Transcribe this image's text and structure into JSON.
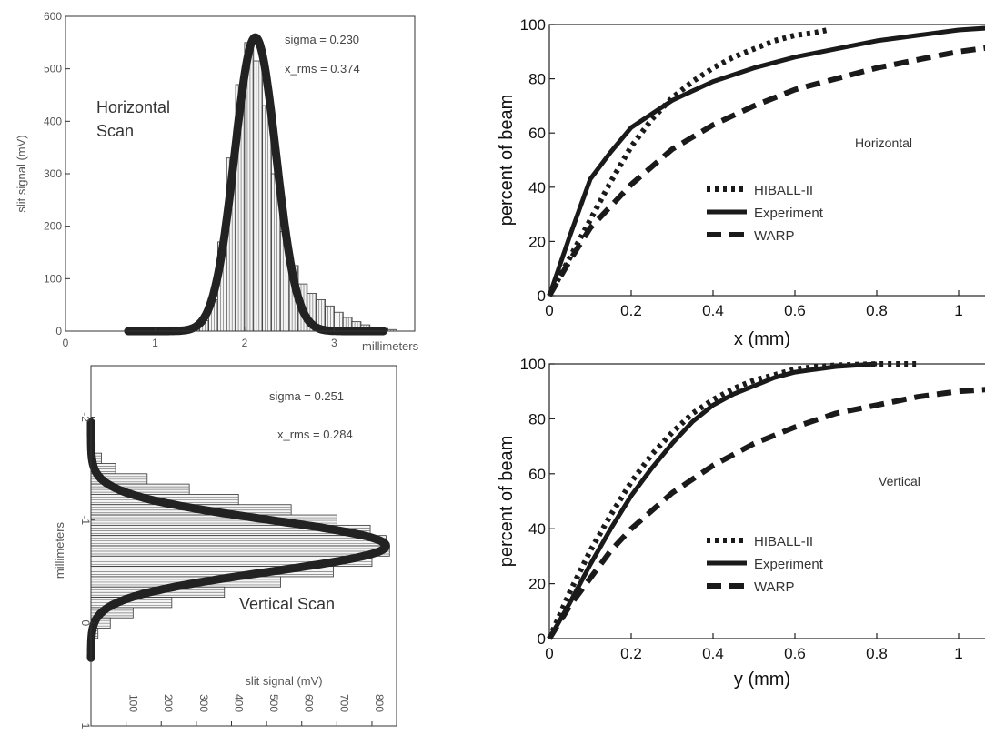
{
  "chart_data": [
    {
      "id": "h_hist",
      "type": "bar",
      "annotation": "Horizontal\nScan",
      "stats": [
        "sigma = 0.230",
        "x_rms = 0.374"
      ],
      "ylabel": "slit signal (mV)",
      "x_unit_label": "millimeters",
      "xlim": [
        0,
        3.9
      ],
      "ylim": [
        0,
        600
      ],
      "xticks": [
        0,
        1,
        2,
        3
      ],
      "yticks": [
        0,
        100,
        200,
        300,
        400,
        500,
        600
      ],
      "bins": [
        0.7,
        0.8,
        0.9,
        1.0,
        1.1,
        1.2,
        1.3,
        1.4,
        1.5,
        1.6,
        1.7,
        1.8,
        1.9,
        2.0,
        2.1,
        2.2,
        2.3,
        2.4,
        2.5,
        2.6,
        2.7,
        2.8,
        2.9,
        3.0,
        3.1,
        3.2,
        3.3,
        3.4,
        3.5,
        3.6
      ],
      "bin_width": 0.1,
      "values": [
        4,
        5,
        6,
        7,
        8,
        8,
        8,
        10,
        20,
        60,
        170,
        330,
        470,
        550,
        515,
        430,
        300,
        190,
        125,
        90,
        72,
        60,
        48,
        36,
        26,
        18,
        12,
        8,
        5,
        3
      ],
      "fit": {
        "name": "gaussian fit",
        "mu": 2.12,
        "sigma": 0.23,
        "amplitude": 560
      }
    },
    {
      "id": "v_hist",
      "type": "bar",
      "orientation": "horizontal",
      "annotation": "Vertical Scan",
      "stats": [
        "sigma = 0.251",
        "x_rms = 0.284"
      ],
      "xlabel": "slit signal (mV)",
      "ylabel": "millimeters",
      "xlim": [
        0,
        870
      ],
      "ylim": [
        -2.5,
        1
      ],
      "xticks": [
        100,
        200,
        300,
        400,
        500,
        600,
        700,
        800
      ],
      "yticks": [
        -2,
        -1,
        0,
        1
      ],
      "bins": [
        -1.95,
        -1.85,
        -1.75,
        -1.65,
        -1.55,
        -1.45,
        -1.35,
        -1.25,
        -1.15,
        -1.05,
        -0.95,
        -0.85,
        -0.75,
        -0.65,
        -0.55,
        -0.45,
        -0.35,
        -0.25,
        -0.15,
        -0.05,
        0.05,
        0.15,
        0.25
      ],
      "bin_width": 0.1,
      "values": [
        2,
        4,
        12,
        30,
        70,
        160,
        280,
        420,
        570,
        700,
        795,
        840,
        850,
        800,
        690,
        540,
        380,
        230,
        120,
        55,
        20,
        6,
        2
      ],
      "fit": {
        "name": "gaussian fit",
        "mu": -0.75,
        "sigma": 0.251,
        "amplitude": 840
      }
    },
    {
      "id": "h_cum",
      "type": "line",
      "panel_label": "Horizontal",
      "xlabel": "x (mm)",
      "ylabel": "percent of beam",
      "xlim": [
        0,
        1.2
      ],
      "ylim": [
        0,
        100
      ],
      "xticks": [
        0,
        0.2,
        0.4,
        0.6,
        0.8,
        1
      ],
      "yticks": [
        0,
        20,
        40,
        60,
        80,
        100
      ],
      "series": [
        {
          "name": "HIBALL-II",
          "style": "dotted",
          "x": [
            0,
            0.05,
            0.1,
            0.15,
            0.2,
            0.25,
            0.3,
            0.35,
            0.4,
            0.45,
            0.5,
            0.55,
            0.6,
            0.65,
            0.68
          ],
          "y": [
            0,
            14,
            28,
            42,
            55,
            65,
            73,
            79,
            84,
            88,
            91,
            94,
            96,
            97,
            98
          ]
        },
        {
          "name": "Experiment",
          "style": "solid",
          "x": [
            0,
            0.05,
            0.1,
            0.15,
            0.2,
            0.3,
            0.4,
            0.5,
            0.6,
            0.7,
            0.8,
            0.9,
            1.0,
            1.1,
            1.2
          ],
          "y": [
            0,
            22,
            43,
            53,
            62,
            72,
            79,
            84,
            88,
            91,
            94,
            96,
            98,
            99,
            100
          ]
        },
        {
          "name": "WARP",
          "style": "dashed",
          "x": [
            0,
            0.05,
            0.1,
            0.15,
            0.2,
            0.3,
            0.4,
            0.5,
            0.6,
            0.7,
            0.8,
            0.9,
            1.0,
            1.1,
            1.2
          ],
          "y": [
            0,
            13,
            25,
            33,
            41,
            54,
            63,
            70,
            76,
            80,
            84,
            87,
            90,
            92,
            93
          ]
        }
      ]
    },
    {
      "id": "v_cum",
      "type": "line",
      "panel_label": "Vertical",
      "xlabel": "y (mm)",
      "ylabel": "percent of beam",
      "xlim": [
        0,
        1.2
      ],
      "ylim": [
        0,
        100
      ],
      "xticks": [
        0,
        0.2,
        0.4,
        0.6,
        0.8,
        1
      ],
      "yticks": [
        0,
        20,
        40,
        60,
        80,
        100
      ],
      "series": [
        {
          "name": "HIBALL-II",
          "style": "dotted",
          "x": [
            0,
            0.05,
            0.1,
            0.15,
            0.2,
            0.25,
            0.3,
            0.35,
            0.4,
            0.45,
            0.5,
            0.55,
            0.6,
            0.65,
            0.7,
            0.8,
            0.9
          ],
          "y": [
            0,
            17,
            32,
            45,
            57,
            67,
            75,
            82,
            87,
            91,
            94,
            96,
            98,
            99,
            99.5,
            100,
            100
          ]
        },
        {
          "name": "Experiment",
          "style": "solid",
          "x": [
            0,
            0.05,
            0.1,
            0.15,
            0.2,
            0.25,
            0.3,
            0.35,
            0.4,
            0.45,
            0.5,
            0.55,
            0.6,
            0.65,
            0.7,
            0.8
          ],
          "y": [
            0,
            13,
            27,
            40,
            52,
            62,
            71,
            79,
            85,
            89,
            92,
            95,
            97,
            98,
            99,
            100
          ]
        },
        {
          "name": "WARP",
          "style": "dashed",
          "x": [
            0,
            0.05,
            0.1,
            0.15,
            0.2,
            0.3,
            0.4,
            0.5,
            0.6,
            0.7,
            0.8,
            0.9,
            1.0,
            1.1,
            1.2
          ],
          "y": [
            0,
            12,
            22,
            32,
            40,
            53,
            63,
            71,
            77,
            82,
            85,
            88,
            90,
            91,
            92
          ]
        }
      ]
    }
  ]
}
